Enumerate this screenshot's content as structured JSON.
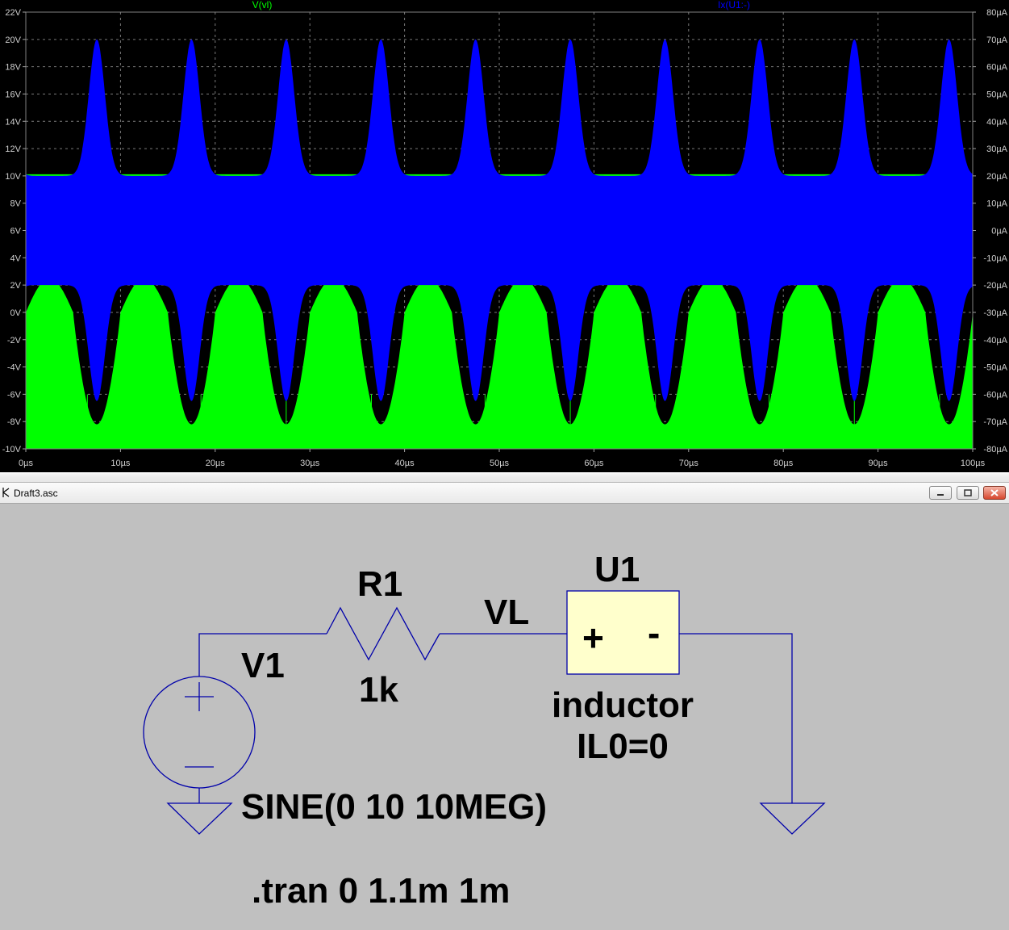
{
  "plot": {
    "trace_labels": [
      {
        "text": "V(vl)",
        "color": "#00ff00"
      },
      {
        "text": "Ix(U1:-)",
        "color": "#0000ff"
      }
    ],
    "left_axis_labels": [
      "22V",
      "20V",
      "18V",
      "16V",
      "14V",
      "12V",
      "10V",
      "8V",
      "6V",
      "4V",
      "2V",
      "0V",
      "-2V",
      "-4V",
      "-6V",
      "-8V",
      "-10V"
    ],
    "right_axis_labels": [
      "80µA",
      "70µA",
      "60µA",
      "50µA",
      "40µA",
      "30µA",
      "20µA",
      "10µA",
      "0µA",
      "-10µA",
      "-20µA",
      "-30µA",
      "-40µA",
      "-50µA",
      "-60µA",
      "-70µA",
      "-80µA"
    ],
    "x_axis_labels": [
      "0µs",
      "10µs",
      "20µs",
      "30µs",
      "40µs",
      "50µs",
      "60µs",
      "70µs",
      "80µs",
      "90µs",
      "100µs"
    ],
    "chart_data": {
      "type": "line",
      "x_unit": "µs",
      "xlim": [
        0,
        100
      ],
      "left_ylim": [
        -10,
        22
      ],
      "right_ylim": [
        -80,
        80
      ],
      "grid": true,
      "series": [
        {
          "name": "V(vl)",
          "color": "#00ff00",
          "axis": "left",
          "envelope_period_us": 10,
          "peak_min_v": -8.2,
          "peak_max_v": 10.0,
          "envelope_upper_min_v": 10.0,
          "envelope_lower_max_v": 2.5,
          "envelope_lower_min_v": -10.0
        },
        {
          "name": "Ix(U1:-)",
          "color": "#0000ff",
          "axis": "right",
          "envelope_period_us": 10,
          "upper_peak_ua": 70,
          "upper_base_ua": 20,
          "lower_base_ua": -20,
          "lower_peak_ua": -70
        }
      ]
    }
  },
  "schematic_window": {
    "title": "Draft3.asc",
    "buttons": [
      "minimize-button",
      "restore-button",
      "close-button"
    ]
  },
  "schematic": {
    "v1_name": "V1",
    "v1_value": "SINE(0 10 10MEG)",
    "r1_name": "R1",
    "r1_value": "1k",
    "net_label": "VL",
    "u1_name": "U1",
    "u1_plus": "+",
    "u1_minus": "-",
    "u1_model": "inductor",
    "u1_param": "IL0=0",
    "directive": ".tran 0 1.1m 1m"
  }
}
